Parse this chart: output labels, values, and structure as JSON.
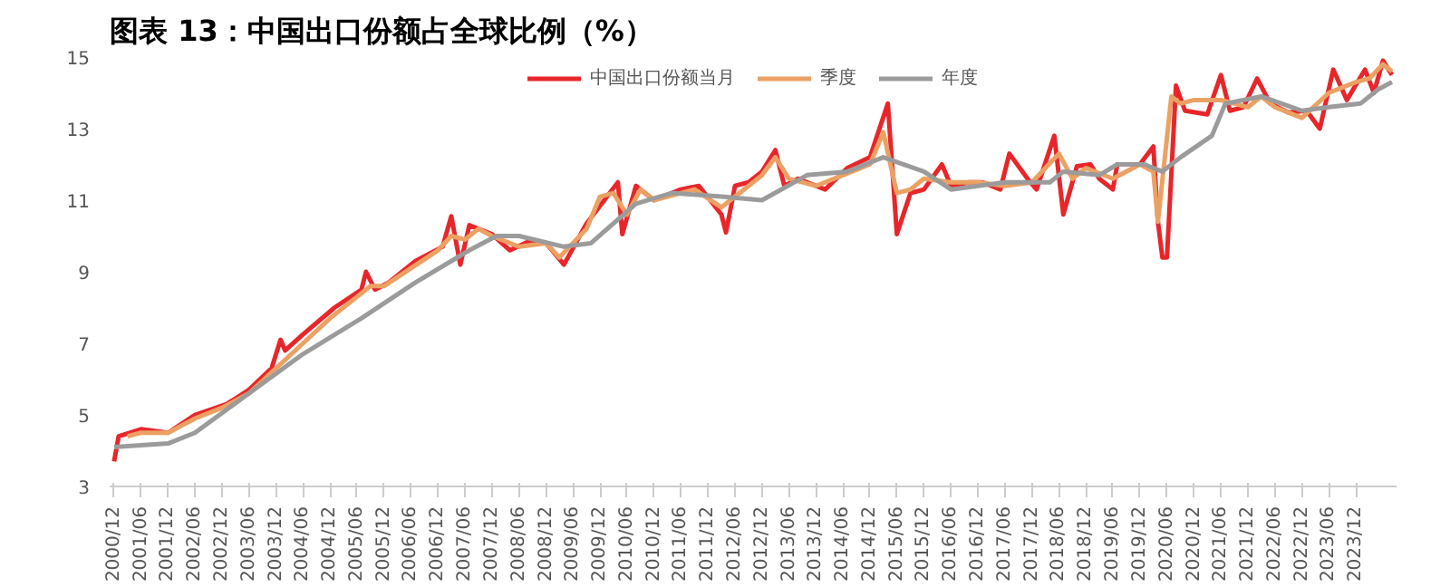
{
  "chart_data": {
    "type": "line",
    "title": "图表 13：中国出口份额占全球比例（%）",
    "xlim": [
      "2000-11",
      "2024-09"
    ],
    "xticks": [
      {
        "value": "2000-12",
        "label": "2000/12"
      },
      {
        "value": "2001-06",
        "label": "2001/06"
      },
      {
        "value": "2001-12",
        "label": "2001/12"
      },
      {
        "value": "2002-06",
        "label": "2002/06"
      },
      {
        "value": "2002-12",
        "label": "2002/12"
      },
      {
        "value": "2003-06",
        "label": "2003/06"
      },
      {
        "value": "2003-12",
        "label": "2003/12"
      },
      {
        "value": "2004-06",
        "label": "2004/06"
      },
      {
        "value": "2004-12",
        "label": "2004/12"
      },
      {
        "value": "2005-06",
        "label": "2005/06"
      },
      {
        "value": "2005-12",
        "label": "2005/12"
      },
      {
        "value": "2006-06",
        "label": "2006/06"
      },
      {
        "value": "2006-12",
        "label": "2006/12"
      },
      {
        "value": "2007-06",
        "label": "2007/06"
      },
      {
        "value": "2007-12",
        "label": "2007/12"
      },
      {
        "value": "2008-06",
        "label": "2008/06"
      },
      {
        "value": "2008-12",
        "label": "2008/12"
      },
      {
        "value": "2009-06",
        "label": "2009/06"
      },
      {
        "value": "2009-12",
        "label": "2009/12"
      },
      {
        "value": "2010-06",
        "label": "2010/06"
      },
      {
        "value": "2010-12",
        "label": "2010/12"
      },
      {
        "value": "2011-06",
        "label": "2011/06"
      },
      {
        "value": "2011-12",
        "label": "2011/12"
      },
      {
        "value": "2012-06",
        "label": "2012/06"
      },
      {
        "value": "2012-12",
        "label": "2012/12"
      },
      {
        "value": "2013-06",
        "label": "2013/06"
      },
      {
        "value": "2013-12",
        "label": "2013/12"
      },
      {
        "value": "2014-06",
        "label": "2014/06"
      },
      {
        "value": "2014-12",
        "label": "2014/12"
      },
      {
        "value": "2015-06",
        "label": "2015/06"
      },
      {
        "value": "2015-12",
        "label": "2015/12"
      },
      {
        "value": "2016-06",
        "label": "2016/06"
      },
      {
        "value": "2016-12",
        "label": "2016/12"
      },
      {
        "value": "2017-06",
        "label": "2017/06"
      },
      {
        "value": "2017-12",
        "label": "2017/12"
      },
      {
        "value": "2018-06",
        "label": "2018/06"
      },
      {
        "value": "2018-12",
        "label": "2018/12"
      },
      {
        "value": "2019-06",
        "label": "2019/06"
      },
      {
        "value": "2019-12",
        "label": "2019/12"
      },
      {
        "value": "2020-06",
        "label": "2020/06"
      },
      {
        "value": "2020-12",
        "label": "2020/12"
      },
      {
        "value": "2021-06",
        "label": "2021/06"
      },
      {
        "value": "2021-12",
        "label": "2021/12"
      },
      {
        "value": "2022-06",
        "label": "2022/06"
      },
      {
        "value": "2022-12",
        "label": "2022/12"
      },
      {
        "value": "2023-06",
        "label": "2023/06"
      },
      {
        "value": "2023-12",
        "label": "2023/12"
      }
    ],
    "ylim": [
      3,
      15
    ],
    "yticks": [
      3,
      5,
      7,
      9,
      11,
      13,
      15
    ],
    "grid": false,
    "legend": "top",
    "series": [
      {
        "name": "中国出口份额当月",
        "color": "#e8262a",
        "x": [
          "2000-12",
          "2001-01",
          "2001-06",
          "2001-12",
          "2002-06",
          "2003-01",
          "2003-06",
          "2003-11",
          "2004-01",
          "2004-02",
          "2004-06",
          "2005-01",
          "2005-07",
          "2005-08",
          "2005-10",
          "2006-01",
          "2006-07",
          "2007-01",
          "2007-03",
          "2007-05",
          "2007-07",
          "2007-12",
          "2008-04",
          "2008-09",
          "2008-12",
          "2009-04",
          "2009-09",
          "2010-04",
          "2010-05",
          "2010-08",
          "2010-12",
          "2011-06",
          "2011-10",
          "2012-03",
          "2012-04",
          "2012-06",
          "2012-09",
          "2012-12",
          "2013-03",
          "2013-05",
          "2013-08",
          "2014-02",
          "2014-07",
          "2014-12",
          "2015-04",
          "2015-06",
          "2015-09",
          "2015-12",
          "2016-04",
          "2016-06",
          "2016-10",
          "2017-01",
          "2017-05",
          "2017-07",
          "2017-11",
          "2018-01",
          "2018-05",
          "2018-07",
          "2018-10",
          "2019-01",
          "2019-03",
          "2019-06",
          "2019-07",
          "2019-12",
          "2020-03",
          "2020-04",
          "2020-05",
          "2020-06",
          "2020-08",
          "2020-10",
          "2021-03",
          "2021-06",
          "2021-08",
          "2021-11",
          "2022-02",
          "2022-05",
          "2022-09",
          "2023-01",
          "2023-04",
          "2023-07",
          "2023-10",
          "2024-02",
          "2024-04",
          "2024-06",
          "2024-08"
        ],
        "values": [
          3.7,
          4.4,
          4.6,
          4.5,
          5.0,
          5.3,
          5.7,
          6.3,
          7.1,
          6.8,
          7.25,
          8.0,
          8.5,
          9.0,
          8.5,
          8.7,
          9.3,
          9.7,
          10.55,
          9.2,
          10.3,
          10.05,
          9.6,
          9.9,
          9.8,
          9.2,
          10.35,
          11.5,
          10.05,
          11.4,
          11.0,
          11.3,
          11.4,
          10.6,
          10.1,
          11.4,
          11.5,
          11.8,
          12.4,
          11.4,
          11.6,
          11.3,
          11.9,
          12.2,
          13.7,
          10.05,
          11.2,
          11.3,
          12.0,
          11.4,
          11.5,
          11.5,
          11.3,
          12.3,
          11.6,
          11.3,
          12.8,
          10.6,
          11.95,
          12.0,
          11.6,
          11.3,
          12.0,
          12.0,
          12.5,
          10.4,
          9.4,
          9.4,
          14.2,
          13.5,
          13.4,
          14.5,
          13.5,
          13.6,
          14.4,
          13.7,
          13.45,
          13.5,
          13.0,
          14.65,
          13.8,
          14.65,
          14.0,
          14.9,
          14.5
        ]
      },
      {
        "name": "季度",
        "color": "#eba163",
        "x": [
          "2001-03",
          "2001-06",
          "2001-12",
          "2002-06",
          "2002-12",
          "2003-06",
          "2003-12",
          "2004-06",
          "2004-12",
          "2005-06",
          "2005-09",
          "2005-12",
          "2006-06",
          "2006-12",
          "2007-03",
          "2007-06",
          "2007-09",
          "2007-12",
          "2008-06",
          "2008-12",
          "2009-03",
          "2009-09",
          "2009-12",
          "2010-03",
          "2010-06",
          "2010-09",
          "2010-12",
          "2011-06",
          "2011-09",
          "2012-03",
          "2012-06",
          "2012-09",
          "2012-12",
          "2013-03",
          "2013-06",
          "2013-12",
          "2014-06",
          "2014-12",
          "2015-03",
          "2015-06",
          "2015-09",
          "2015-12",
          "2016-06",
          "2016-12",
          "2017-06",
          "2017-12",
          "2018-06",
          "2018-09",
          "2018-12",
          "2019-06",
          "2019-12",
          "2020-03",
          "2020-04",
          "2020-07",
          "2020-09",
          "2020-12",
          "2021-06",
          "2021-12",
          "2022-03",
          "2022-06",
          "2022-12",
          "2023-06",
          "2023-12",
          "2024-03",
          "2024-06",
          "2024-08"
        ],
        "values": [
          4.4,
          4.5,
          4.5,
          4.9,
          5.2,
          5.6,
          6.3,
          7.0,
          7.7,
          8.3,
          8.6,
          8.6,
          9.1,
          9.6,
          10.0,
          9.9,
          10.2,
          10.0,
          9.7,
          9.8,
          9.4,
          10.2,
          11.1,
          11.2,
          10.6,
          11.3,
          11.0,
          11.2,
          11.3,
          10.8,
          11.1,
          11.4,
          11.7,
          12.2,
          11.6,
          11.4,
          11.7,
          12.0,
          12.9,
          11.2,
          11.3,
          11.6,
          11.5,
          11.5,
          11.4,
          11.5,
          12.3,
          11.6,
          11.9,
          11.6,
          12.0,
          11.8,
          10.4,
          13.9,
          13.7,
          13.8,
          13.8,
          13.6,
          13.9,
          13.6,
          13.3,
          14.0,
          14.3,
          14.4,
          14.8,
          14.6
        ]
      },
      {
        "name": "年度",
        "color": "#9b9b9b",
        "x": [
          "2000-12",
          "2001-12",
          "2002-06",
          "2003-06",
          "2004-06",
          "2005-07",
          "2006-07",
          "2007-07",
          "2008-01",
          "2008-06",
          "2009-04",
          "2009-10",
          "2010-08",
          "2011-04",
          "2012-03",
          "2012-12",
          "2013-10",
          "2014-07",
          "2015-03",
          "2015-12",
          "2016-06",
          "2017-06",
          "2018-04",
          "2018-07",
          "2019-03",
          "2019-07",
          "2020-01",
          "2020-05",
          "2020-09",
          "2021-04",
          "2021-07",
          "2022-03",
          "2022-12",
          "2023-06",
          "2024-01",
          "2024-05",
          "2024-08"
        ],
        "values": [
          4.1,
          4.2,
          4.5,
          5.6,
          6.7,
          7.7,
          8.7,
          9.6,
          10.0,
          10.0,
          9.7,
          9.8,
          10.9,
          11.2,
          11.1,
          11.0,
          11.7,
          11.8,
          12.2,
          11.8,
          11.3,
          11.5,
          11.5,
          11.8,
          11.7,
          12.0,
          12.0,
          11.8,
          12.2,
          12.8,
          13.7,
          13.9,
          13.5,
          13.6,
          13.7,
          14.1,
          14.3
        ]
      }
    ]
  }
}
